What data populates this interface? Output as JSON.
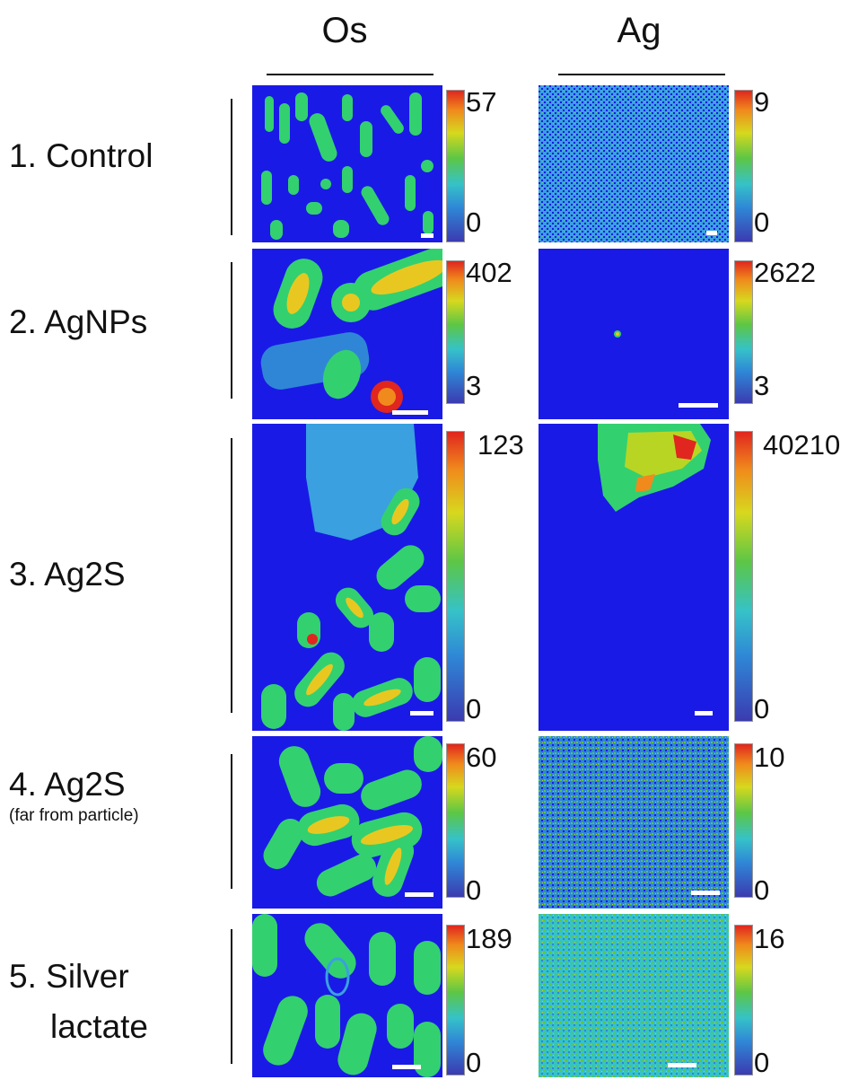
{
  "columns": [
    "Os",
    "Ag"
  ],
  "rows": [
    {
      "label": "1. Control",
      "sub": "",
      "os": {
        "max": "57",
        "min": "0"
      },
      "ag": {
        "max": "9",
        "min": "0"
      }
    },
    {
      "label": "2. AgNPs",
      "sub": "",
      "os": {
        "max": "402",
        "min": "3"
      },
      "ag": {
        "max": "2622",
        "min": "3"
      }
    },
    {
      "label": "3. Ag2S",
      "sub": "",
      "os": {
        "max": "123",
        "min": "0"
      },
      "ag": {
        "max": "40210",
        "min": "0"
      }
    },
    {
      "label": "4. Ag2S",
      "sub": "(far from particle)",
      "os": {
        "max": "60",
        "min": "0"
      },
      "ag": {
        "max": "10",
        "min": "0"
      }
    },
    {
      "label": "5. Silver",
      "label2": "lactate",
      "sub": "",
      "os": {
        "max": "189",
        "min": "0"
      },
      "ag": {
        "max": "16",
        "min": "0"
      }
    }
  ],
  "colors": {
    "background": "#1a1ae6",
    "cell": "#33d070",
    "cell_hot": "#e8c820",
    "noise": "#3aa0e0"
  }
}
